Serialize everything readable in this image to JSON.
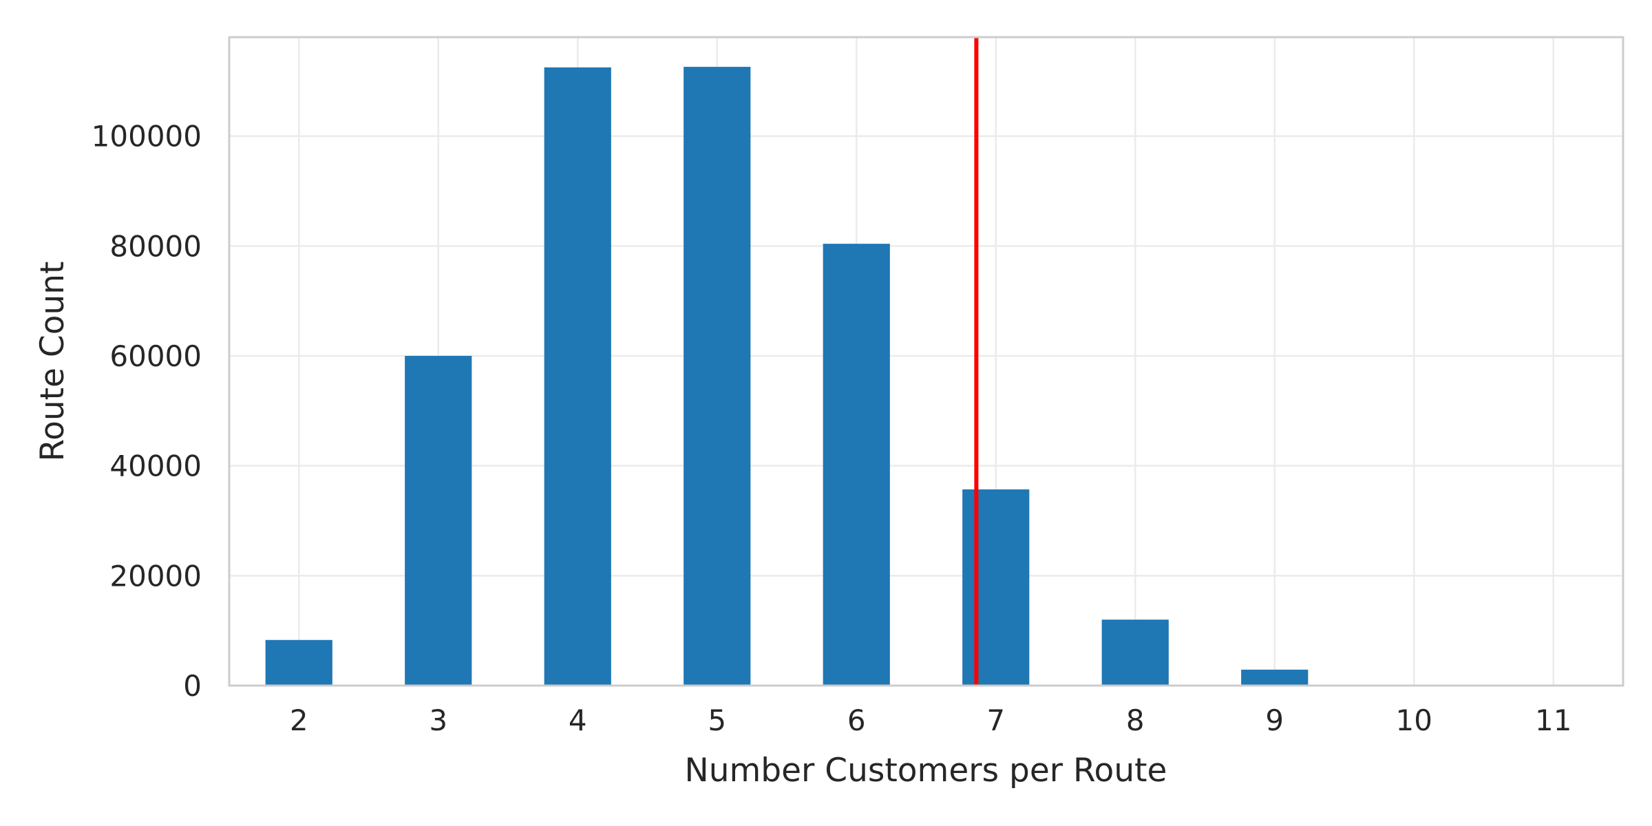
{
  "chart_data": {
    "type": "bar",
    "categories": [
      "2",
      "3",
      "4",
      "5",
      "6",
      "7",
      "8",
      "9",
      "10",
      "11"
    ],
    "values": [
      8300,
      60000,
      112500,
      112600,
      80400,
      35700,
      12000,
      2900,
      150,
      50
    ],
    "xlabel": "Number Customers per Route",
    "ylabel": "Route Count",
    "ylim": [
      0,
      118000
    ],
    "yticks": [
      0,
      20000,
      40000,
      60000,
      80000,
      100000
    ],
    "grid": true,
    "bar_color": "#1f77b4",
    "reference_line": {
      "x": 6.86,
      "color": "#ff0000"
    }
  }
}
